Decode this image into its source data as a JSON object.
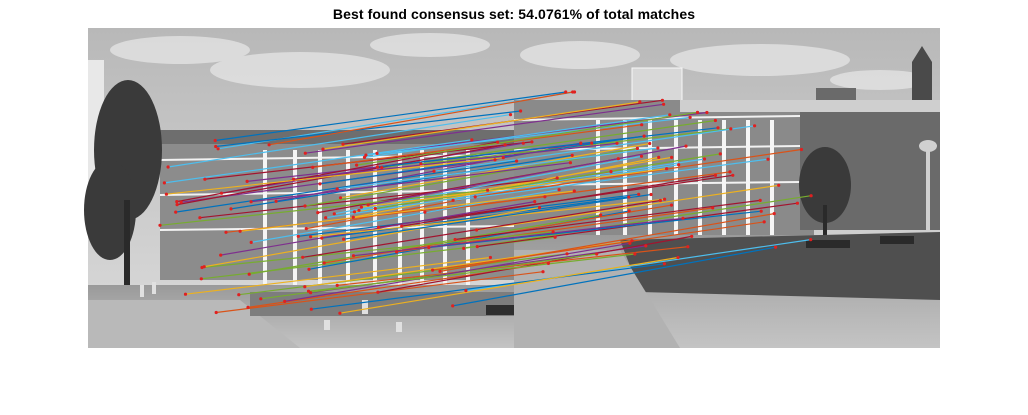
{
  "figure": {
    "title": "Best found consensus set: 54.0761% of total matches"
  },
  "colors": {
    "sky": "#c9c9c9",
    "building": "#8e8e8e",
    "ground": "#a9a9a9",
    "match_palette": [
      "#0072bd",
      "#d95319",
      "#edb120",
      "#7e2f8e",
      "#77ac30",
      "#4dbeee",
      "#a2142f"
    ],
    "keypoint": "#e02020"
  },
  "matches": {
    "count": 90
  }
}
